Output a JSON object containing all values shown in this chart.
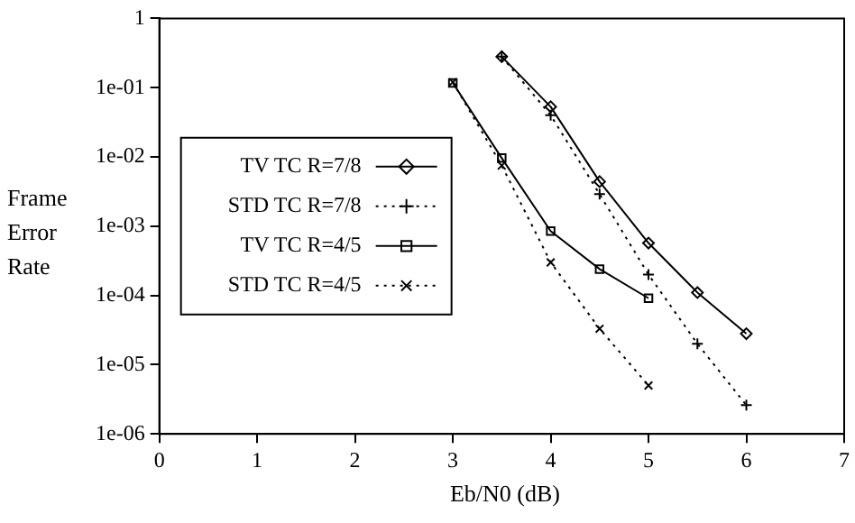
{
  "chart_data": {
    "type": "line",
    "xlabel": "Eb/N0 (dB)",
    "ylabel": "Frame Error Rate",
    "xlim": [
      0,
      7
    ],
    "xticks": [
      0,
      1,
      2,
      3,
      4,
      5,
      6,
      7
    ],
    "ylim": [
      1e-06,
      1
    ],
    "yticks": [
      {
        "value": 1e-06,
        "label": "1e-06"
      },
      {
        "value": 1e-05,
        "label": "1e-05"
      },
      {
        "value": 0.0001,
        "label": "1e-04"
      },
      {
        "value": 0.001,
        "label": "1e-03"
      },
      {
        "value": 0.01,
        "label": "1e-02"
      },
      {
        "value": 0.1,
        "label": "1e-01"
      },
      1
    ],
    "log": "y",
    "grid": false,
    "legend": "left",
    "series": [
      {
        "name": "TV TC R=7/8",
        "color": "#000000",
        "marker": "diamond",
        "line_style": "solid",
        "x": [
          3.5,
          4,
          4.5,
          5,
          5.5,
          6
        ],
        "values": [
          0.28,
          0.053,
          0.0044,
          0.00057,
          0.00011,
          2.8e-05
        ]
      },
      {
        "name": "STD TC R=7/8",
        "color": "#000000",
        "marker": "cross",
        "line_style": "dotted",
        "x": [
          3.5,
          4,
          4.5,
          5,
          5.5,
          6
        ],
        "values": [
          0.28,
          0.04,
          0.0029,
          0.0002,
          2e-05,
          2.6e-06
        ]
      },
      {
        "name": "TV TC R=4/5",
        "color": "#000000",
        "marker": "square",
        "line_style": "solid",
        "x": [
          3,
          3.5,
          4,
          4.5,
          5
        ],
        "values": [
          0.117,
          0.0096,
          0.00085,
          0.00024,
          9.1e-05
        ]
      },
      {
        "name": "STD TC R=4/5",
        "color": "#000000",
        "marker": "x",
        "line_style": "dotted",
        "x": [
          3,
          3.5,
          4,
          4.5,
          5
        ],
        "values": [
          0.12,
          0.0075,
          0.0003,
          3.3e-05,
          5e-06
        ]
      }
    ]
  }
}
